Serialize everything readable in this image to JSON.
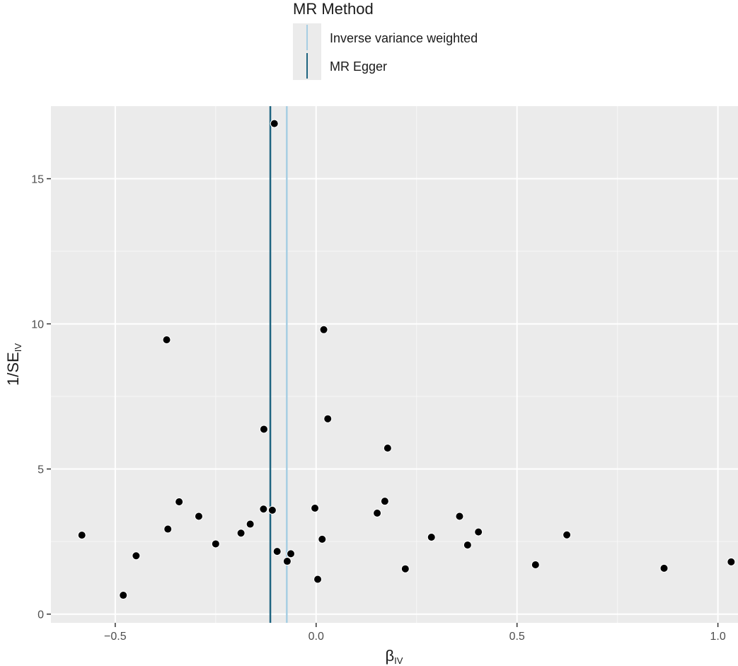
{
  "legend": {
    "title": "MR Method",
    "items": [
      {
        "label": "Inverse variance weighted",
        "color": "#a6cee3"
      },
      {
        "label": "MR Egger",
        "color": "#1f6480"
      }
    ]
  },
  "chart_data": {
    "type": "scatter",
    "xlabel": {
      "main": "β",
      "sub": "IV"
    },
    "ylabel": {
      "main": "1/SE",
      "sub": "IV"
    },
    "xlim": [
      -0.66,
      1.05
    ],
    "ylim": [
      -0.3,
      17.5
    ],
    "x_ticks": [
      -0.5,
      0.0,
      0.5,
      1.0
    ],
    "x_tick_labels": [
      "−0.5",
      "0.0",
      "0.5",
      "1.0"
    ],
    "y_ticks": [
      0,
      5,
      10,
      15
    ],
    "y_tick_labels": [
      "0",
      "5",
      "10",
      "15"
    ],
    "grid": true,
    "legend_position": "top",
    "vlines": [
      {
        "name": "Inverse variance weighted",
        "x": -0.073,
        "color": "#a6cee3"
      },
      {
        "name": "MR Egger",
        "x": -0.114,
        "color": "#1f6480"
      }
    ],
    "points": [
      {
        "x": -0.104,
        "y": 16.9
      },
      {
        "x": 0.019,
        "y": 9.8
      },
      {
        "x": -0.372,
        "y": 9.45
      },
      {
        "x": 0.029,
        "y": 6.73
      },
      {
        "x": -0.13,
        "y": 6.37
      },
      {
        "x": 0.178,
        "y": 5.72
      },
      {
        "x": -0.341,
        "y": 3.87
      },
      {
        "x": 0.171,
        "y": 3.89
      },
      {
        "x": -0.131,
        "y": 3.62
      },
      {
        "x": -0.109,
        "y": 3.58
      },
      {
        "x": -0.003,
        "y": 3.65
      },
      {
        "x": 0.152,
        "y": 3.48
      },
      {
        "x": 0.357,
        "y": 3.37
      },
      {
        "x": -0.292,
        "y": 3.37
      },
      {
        "x": -0.164,
        "y": 3.1
      },
      {
        "x": -0.369,
        "y": 2.93
      },
      {
        "x": 0.404,
        "y": 2.83
      },
      {
        "x": -0.187,
        "y": 2.79
      },
      {
        "x": 0.624,
        "y": 2.73
      },
      {
        "x": -0.583,
        "y": 2.72
      },
      {
        "x": 0.287,
        "y": 2.65
      },
      {
        "x": 0.015,
        "y": 2.58
      },
      {
        "x": -0.25,
        "y": 2.42
      },
      {
        "x": 0.377,
        "y": 2.38
      },
      {
        "x": -0.097,
        "y": 2.16
      },
      {
        "x": -0.063,
        "y": 2.08
      },
      {
        "x": -0.448,
        "y": 2.01
      },
      {
        "x": -0.072,
        "y": 1.82
      },
      {
        "x": 1.033,
        "y": 1.8
      },
      {
        "x": 0.546,
        "y": 1.7
      },
      {
        "x": 0.866,
        "y": 1.58
      },
      {
        "x": 0.222,
        "y": 1.56
      },
      {
        "x": 0.004,
        "y": 1.2
      },
      {
        "x": -0.48,
        "y": 0.65
      }
    ]
  }
}
